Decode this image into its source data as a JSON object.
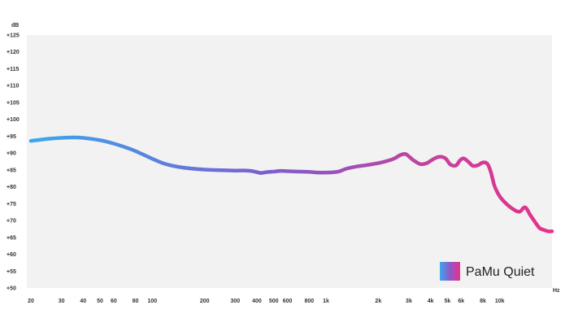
{
  "chart_data": {
    "type": "line",
    "title": "",
    "xlabel": "Hz",
    "ylabel": "dB",
    "x_scale": "log",
    "xlim": [
      20,
      20000
    ],
    "ylim": [
      50,
      125
    ],
    "grid": false,
    "legend_position": "bottom-right",
    "y_ticks": [
      "+50",
      "+55",
      "+60",
      "+65",
      "+70",
      "+75",
      "+80",
      "+85",
      "+90",
      "+95",
      "+100",
      "+105",
      "+110",
      "+115",
      "+120",
      "+125"
    ],
    "y_tick_values": [
      50,
      55,
      60,
      65,
      70,
      75,
      80,
      85,
      90,
      95,
      100,
      105,
      110,
      115,
      120,
      125
    ],
    "x_ticks": [
      "20",
      "30",
      "40",
      "50",
      "60",
      "80",
      "100",
      "200",
      "300",
      "400",
      "500",
      "600",
      "800",
      "1k",
      "2k",
      "3k",
      "4k",
      "5k",
      "6k",
      "8k",
      "10k"
    ],
    "x_tick_values": [
      20,
      30,
      40,
      50,
      60,
      80,
      100,
      200,
      300,
      400,
      500,
      600,
      800,
      1000,
      2000,
      3000,
      4000,
      5000,
      6000,
      8000,
      10000
    ],
    "colors": {
      "plot_bg": "#f2f2f2",
      "gradient_start": "#3aa8ec",
      "gradient_mid": "#7a5fd0",
      "gradient_end": "#e0308c"
    },
    "series": [
      {
        "name": "PaMu Quiet",
        "x": [
          20,
          25,
          30,
          35,
          40,
          50,
          60,
          70,
          80,
          100,
          120,
          150,
          200,
          250,
          300,
          350,
          380,
          420,
          450,
          500,
          550,
          600,
          700,
          800,
          900,
          1000,
          1100,
          1200,
          1300,
          1500,
          1700,
          2000,
          2300,
          2500,
          2650,
          2800,
          2900,
          3000,
          3200,
          3500,
          3800,
          4000,
          4300,
          4600,
          4900,
          5200,
          5600,
          5900,
          6200,
          6600,
          7000,
          7500,
          8000,
          8500,
          8900,
          9300,
          9800,
          10300,
          11000,
          12000,
          13000,
          14000,
          15000,
          16000,
          17000,
          18000,
          19000,
          20000
        ],
        "values": [
          93.6,
          94.2,
          94.5,
          94.6,
          94.5,
          93.8,
          92.8,
          91.7,
          90.6,
          88.3,
          86.7,
          85.7,
          85.1,
          84.9,
          84.8,
          84.8,
          84.6,
          84.1,
          84.3,
          84.5,
          84.7,
          84.6,
          84.5,
          84.4,
          84.2,
          84.2,
          84.3,
          84.6,
          85.3,
          86.0,
          86.4,
          87.0,
          87.8,
          88.5,
          89.3,
          89.7,
          89.6,
          89.0,
          87.8,
          86.7,
          87.0,
          87.7,
          88.6,
          88.9,
          88.3,
          86.6,
          86.3,
          87.8,
          88.4,
          87.4,
          86.2,
          86.4,
          87.2,
          86.8,
          84.3,
          80.5,
          77.9,
          76.3,
          74.8,
          73.3,
          72.6,
          73.9,
          71.6,
          69.5,
          67.7,
          67.2,
          66.8,
          66.8
        ]
      }
    ]
  },
  "legend": {
    "label": "PaMu Quiet"
  }
}
